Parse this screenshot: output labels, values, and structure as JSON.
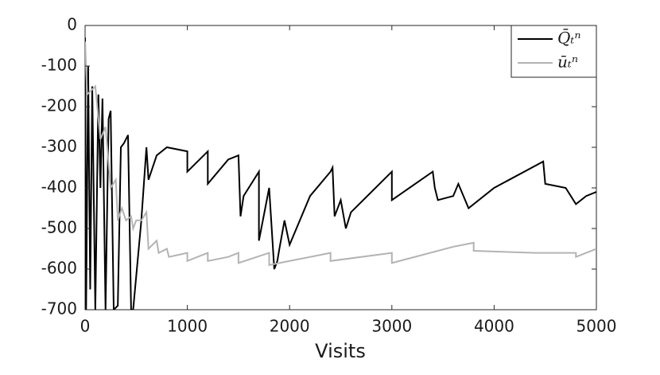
{
  "chart_data": {
    "type": "line",
    "xlabel": "Visits",
    "xlim": [
      0,
      5000
    ],
    "xticks": [
      0,
      1000,
      2000,
      3000,
      4000,
      5000
    ],
    "ylim": [
      -700,
      0
    ],
    "yticks": [
      -700,
      -600,
      -500,
      -400,
      -300,
      -200,
      -100,
      0
    ],
    "grid": false,
    "legend": "top-right",
    "series": [
      {
        "name": "Q̄ₜⁿ",
        "color": "#000000",
        "x": [
          0,
          10,
          30,
          50,
          70,
          100,
          130,
          150,
          170,
          200,
          230,
          250,
          280,
          320,
          350,
          380,
          420,
          450,
          470,
          550,
          600,
          620,
          700,
          800,
          1000,
          1000,
          1200,
          1200,
          1400,
          1500,
          1520,
          1550,
          1600,
          1700,
          1700,
          1800,
          1850,
          1880,
          1900,
          1950,
          2000,
          2200,
          2400,
          2420,
          2440,
          2500,
          2550,
          2600,
          3000,
          3000,
          3400,
          3420,
          3450,
          3600,
          3650,
          3750,
          4000,
          4480,
          4500,
          4700,
          4800,
          4900,
          5000
        ],
        "values": [
          -30,
          -700,
          -100,
          -650,
          -150,
          -700,
          -170,
          -400,
          -180,
          -700,
          -230,
          -210,
          -700,
          -690,
          -300,
          -290,
          -270,
          -700,
          -700,
          -480,
          -300,
          -380,
          -320,
          -300,
          -310,
          -360,
          -310,
          -390,
          -330,
          -320,
          -470,
          -420,
          -400,
          -360,
          -530,
          -400,
          -600,
          -580,
          -550,
          -480,
          -540,
          -420,
          -360,
          -350,
          -470,
          -430,
          -500,
          -460,
          -360,
          -430,
          -360,
          -400,
          -430,
          -420,
          -390,
          -450,
          -400,
          -335,
          -390,
          -400,
          -440,
          -420,
          -410
        ]
      },
      {
        "name": "ūₜⁿ",
        "color": "#b3b3b3",
        "x": [
          0,
          20,
          100,
          150,
          200,
          250,
          300,
          320,
          360,
          400,
          450,
          470,
          500,
          550,
          600,
          620,
          700,
          720,
          800,
          820,
          1000,
          1000,
          1200,
          1200,
          1400,
          1500,
          1500,
          1800,
          1800,
          2400,
          2400,
          3000,
          3000,
          3600,
          3800,
          3800,
          4400,
          4800,
          4800,
          5000
        ],
        "values": [
          -40,
          -170,
          -150,
          -280,
          -250,
          -400,
          -380,
          -480,
          -450,
          -480,
          -470,
          -500,
          -480,
          -480,
          -460,
          -550,
          -530,
          -560,
          -550,
          -570,
          -560,
          -580,
          -560,
          -580,
          -570,
          -560,
          -585,
          -560,
          -590,
          -560,
          -580,
          -560,
          -585,
          -545,
          -535,
          -555,
          -560,
          -560,
          -570,
          -550
        ]
      }
    ]
  }
}
